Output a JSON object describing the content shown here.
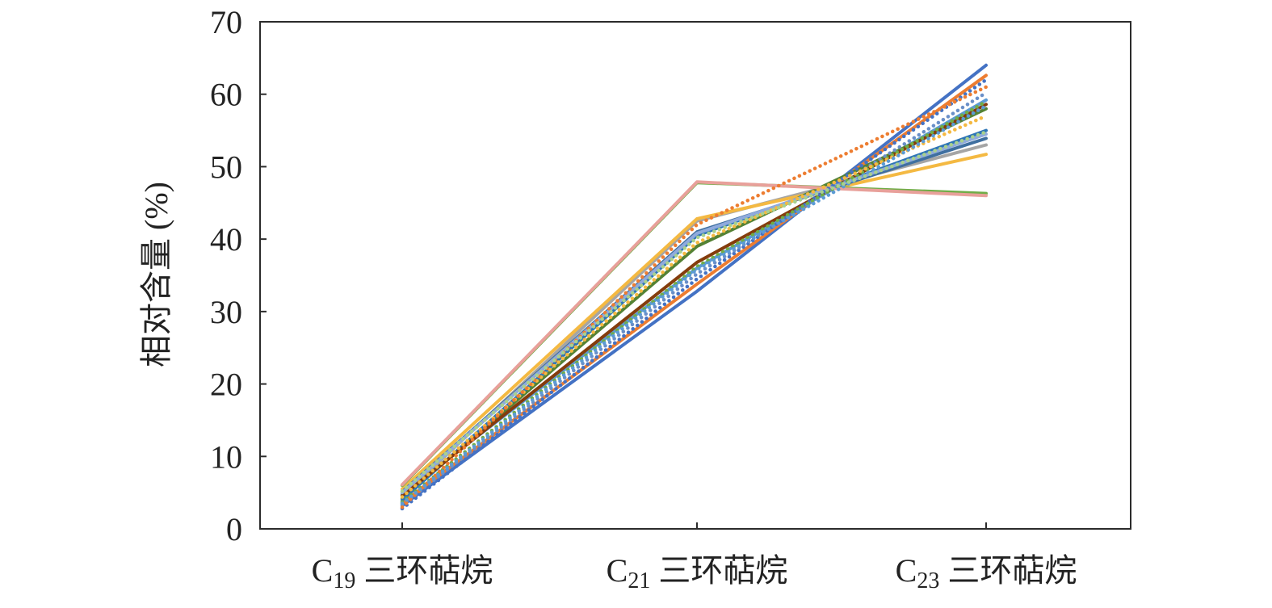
{
  "chart_data": {
    "type": "line",
    "ylabel": "相对含量 (%)",
    "ylim": [
      0,
      70
    ],
    "yticks": [
      0,
      10,
      20,
      30,
      40,
      50,
      60,
      70
    ],
    "grid": false,
    "legend": "none",
    "categories": [
      {
        "prefix": "C",
        "sub": "19",
        "suffix": " 三环萜烷"
      },
      {
        "prefix": "C",
        "sub": "21",
        "suffix": " 三环萜烷"
      },
      {
        "prefix": "C",
        "sub": "23",
        "suffix": " 三环萜烷"
      }
    ],
    "series": [
      {
        "values": [
          3.2,
          32.8,
          64.0
        ],
        "color": "#4472C4",
        "style": "solid"
      },
      {
        "values": [
          3.6,
          33.8,
          62.6
        ],
        "color": "#ED7D31",
        "style": "solid"
      },
      {
        "values": [
          4.5,
          42.5,
          53.0
        ],
        "color": "#A5A5A5",
        "style": "solid"
      },
      {
        "values": [
          5.5,
          42.8,
          51.7
        ],
        "color": "#F4B942",
        "style": "solid"
      },
      {
        "values": [
          4.8,
          36.0,
          59.2
        ],
        "color": "#5B9BD5",
        "style": "solid"
      },
      {
        "values": [
          4.2,
          39.0,
          58.0
        ],
        "color": "#548235",
        "style": "solid"
      },
      {
        "values": [
          4.0,
          40.5,
          55.0
        ],
        "color": "#2E75B6",
        "style": "solid"
      },
      {
        "values": [
          4.6,
          36.8,
          58.6
        ],
        "color": "#843C0C",
        "style": "solid"
      },
      {
        "values": [
          5.1,
          41.0,
          53.9
        ],
        "color": "#3F6FA0",
        "style": "solid"
      },
      {
        "values": [
          6.0,
          47.8,
          46.3
        ],
        "color": "#70AD47",
        "style": "solid"
      },
      {
        "values": [
          5.0,
          40.8,
          54.5
        ],
        "color": "#8FAADC",
        "style": "solid"
      },
      {
        "values": [
          6.1,
          47.9,
          46.0
        ],
        "color": "#E8A09A",
        "style": "solid"
      },
      {
        "values": [
          2.8,
          34.5,
          62.0
        ],
        "color": "#4472C4",
        "style": "dotted"
      },
      {
        "values": [
          3.3,
          35.2,
          60.2
        ],
        "color": "#6A8FC8",
        "style": "dotted"
      },
      {
        "values": [
          3.7,
          36.2,
          59.0
        ],
        "color": "#70AD47",
        "style": "dotted"
      },
      {
        "values": [
          4.4,
          39.5,
          57.0
        ],
        "color": "#F4B942",
        "style": "dotted"
      },
      {
        "values": [
          3.0,
          42.0,
          61.0
        ],
        "color": "#ED7D31",
        "style": "dotted"
      },
      {
        "values": [
          3.5,
          35.8,
          58.4
        ],
        "color": "#5B9BD5",
        "style": "dotted"
      },
      {
        "values": [
          5.2,
          40.2,
          54.8
        ],
        "color": "#A9D18E",
        "style": "dotted"
      }
    ]
  }
}
